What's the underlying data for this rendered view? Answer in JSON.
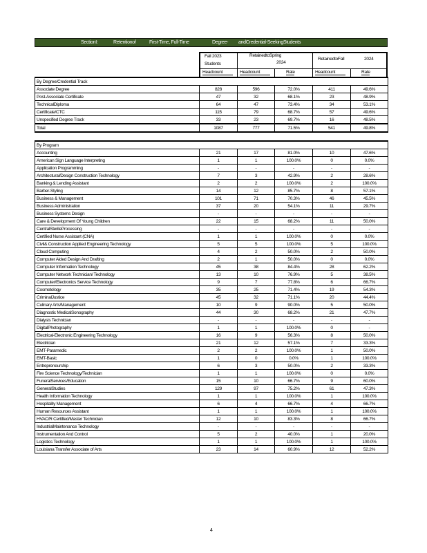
{
  "banner": {
    "parts": [
      "SectionI:",
      "Retentionof",
      "First-Time, Full-Time",
      "Degree-",
      "andCredential-SeekingStudents"
    ],
    "color": "#3b5a24"
  },
  "header": {
    "fall_students": "Fall 2023",
    "students": "Students",
    "spring": "RetainedtoSpring",
    "spring_year": "2024",
    "fall": "RetainedtoFall",
    "fall_year": "2024",
    "headcount": "Headcount",
    "rate": "Rate"
  },
  "sections": [
    {
      "title": "By Degree/Credential Track",
      "rows": [
        [
          "Associate Degree",
          "828",
          "596",
          "72.0%",
          "411",
          "49.6%"
        ],
        [
          "Post-Associate Certificate",
          "47",
          "32",
          "68.1%",
          "23",
          "48.9%"
        ],
        [
          "TechnicalDiploma",
          "64",
          "47",
          "73.4%",
          "34",
          "53.1%"
        ],
        [
          "Certificate/CTC",
          "115",
          "79",
          "68.7%",
          "57",
          "49.6%"
        ],
        [
          "Unspecified Degree Track",
          "33",
          "23",
          "69.7%",
          "16",
          "48.5%"
        ]
      ],
      "total": [
        "Total",
        "1087",
        "777",
        "71.5%",
        "541",
        "49.8%"
      ]
    },
    {
      "title": "By Program",
      "rows": [
        [
          "Accounting",
          "21",
          "17",
          "81.0%",
          "10",
          "47.6%"
        ],
        [
          "American Sign Language Interpreting",
          "1",
          "1",
          "100.0%",
          "0",
          "0.0%"
        ],
        [
          "Application Programming",
          "-",
          "-",
          "-",
          "-",
          "-"
        ],
        [
          "Architectural/Design Construction Technology",
          "7",
          "3",
          "42.9%",
          "2",
          "28.6%"
        ],
        [
          "Banking & Lending Assistant",
          "2",
          "2",
          "100.0%",
          "2",
          "100.0%"
        ],
        [
          "Barber-Styling",
          "14",
          "12",
          "85.7%",
          "8",
          "57.1%"
        ],
        [
          "Business & Management",
          "101",
          "71",
          "70.3%",
          "46",
          "45.5%"
        ],
        [
          "Business Administration",
          "37",
          "20",
          "54.1%",
          "11",
          "29.7%"
        ],
        [
          "Business Systems Design",
          "-",
          "-",
          "-",
          "-",
          "-"
        ],
        [
          "Care & Development Of Young Children",
          "22",
          "15",
          "68.2%",
          "11",
          "50.0%"
        ],
        [
          "CentralSterileProcessing",
          "-",
          "-",
          "-",
          "-",
          "-"
        ],
        [
          "Certified Nurse Assistant (CNA)",
          "1",
          "1",
          "100.0%",
          "0",
          "0.0%"
        ],
        [
          "Civil& Construction Applied Engineering Technology",
          "5",
          "5",
          "100.0%",
          "5",
          "100.0%"
        ],
        [
          "Cloud Computing",
          "4",
          "2",
          "50.0%",
          "2",
          "50.0%"
        ],
        [
          "Computer Aided Design And Drafting",
          "2",
          "1",
          "50.0%",
          "0",
          "0.0%"
        ],
        [
          "Computer Information Technology",
          "45",
          "38",
          "84.4%",
          "28",
          "62.2%"
        ],
        [
          "Computer Network Technician/ Technology",
          "13",
          "10",
          "76.9%",
          "5",
          "38.5%"
        ],
        [
          "Computer/Electronics Service Technology",
          "9",
          "7",
          "77.8%",
          "6",
          "66.7%"
        ],
        [
          "Cosmetology",
          "35",
          "25",
          "71.4%",
          "19",
          "54.3%"
        ],
        [
          "CriminalJustice",
          "45",
          "32",
          "71.1%",
          "20",
          "44.4%"
        ],
        [
          "Culinary Arts/Management",
          "10",
          "9",
          "90.0%",
          "5",
          "50.0%"
        ],
        [
          "Diagnostic MedicalSonography",
          "44",
          "30",
          "68.2%",
          "21",
          "47.7%"
        ],
        [
          "Dialysis Technician",
          "-",
          "-",
          "-",
          "-",
          "-"
        ],
        [
          "DigitalPhotography",
          "1",
          "1",
          "100.0%",
          "0",
          "-"
        ],
        [
          "Electrical-Electronic Engineering Technology",
          "16",
          "9",
          "56.3%",
          "8",
          "50.0%"
        ],
        [
          "Electrician",
          "21",
          "12",
          "57.1%",
          "7",
          "33.3%"
        ],
        [
          "EMT-Paramedic",
          "2",
          "2",
          "100.0%",
          "1",
          "50.0%"
        ],
        [
          "EMT-Basic",
          "1",
          "0",
          "0.0%",
          "1",
          "100.0%"
        ],
        [
          "Entrepreneurship",
          "6",
          "3",
          "50.0%",
          "2",
          "33.3%"
        ],
        [
          "Fire Science Technology/Technician",
          "1",
          "1",
          "100.0%",
          "0",
          "0.0%"
        ],
        [
          "FuneralServices/Education",
          "15",
          "10",
          "66.7%",
          "9",
          "60.0%"
        ],
        [
          "GeneralStudies",
          "129",
          "97",
          "75.2%",
          "61",
          "47.3%"
        ],
        [
          "Health Information Technology",
          "1",
          "1",
          "100.0%",
          "1",
          "100.0%"
        ],
        [
          "Hospitality Management",
          "6",
          "4",
          "66.7%",
          "4",
          "66.7%"
        ],
        [
          "Human Resources Assistant",
          "1",
          "1",
          "100.0%",
          "1",
          "100.0%"
        ],
        [
          "HVAC/R Certified/Master Technician",
          "12",
          "10",
          "83.3%",
          "8",
          "66.7%"
        ],
        [
          "IndustrialMaintenance Technology",
          "-",
          "-",
          "-",
          "-",
          "-"
        ],
        [
          "Instrumentation And Control",
          "5",
          "2",
          "40.0%",
          "1",
          "20.0%"
        ],
        [
          "Logistics Technology",
          "1",
          "1",
          "100.0%",
          "1",
          "100.0%"
        ],
        [
          "Louisiana Transfer Associate of Arts",
          "23",
          "14",
          "60.9%",
          "12",
          "52.2%"
        ]
      ]
    }
  ],
  "page_number": "4"
}
